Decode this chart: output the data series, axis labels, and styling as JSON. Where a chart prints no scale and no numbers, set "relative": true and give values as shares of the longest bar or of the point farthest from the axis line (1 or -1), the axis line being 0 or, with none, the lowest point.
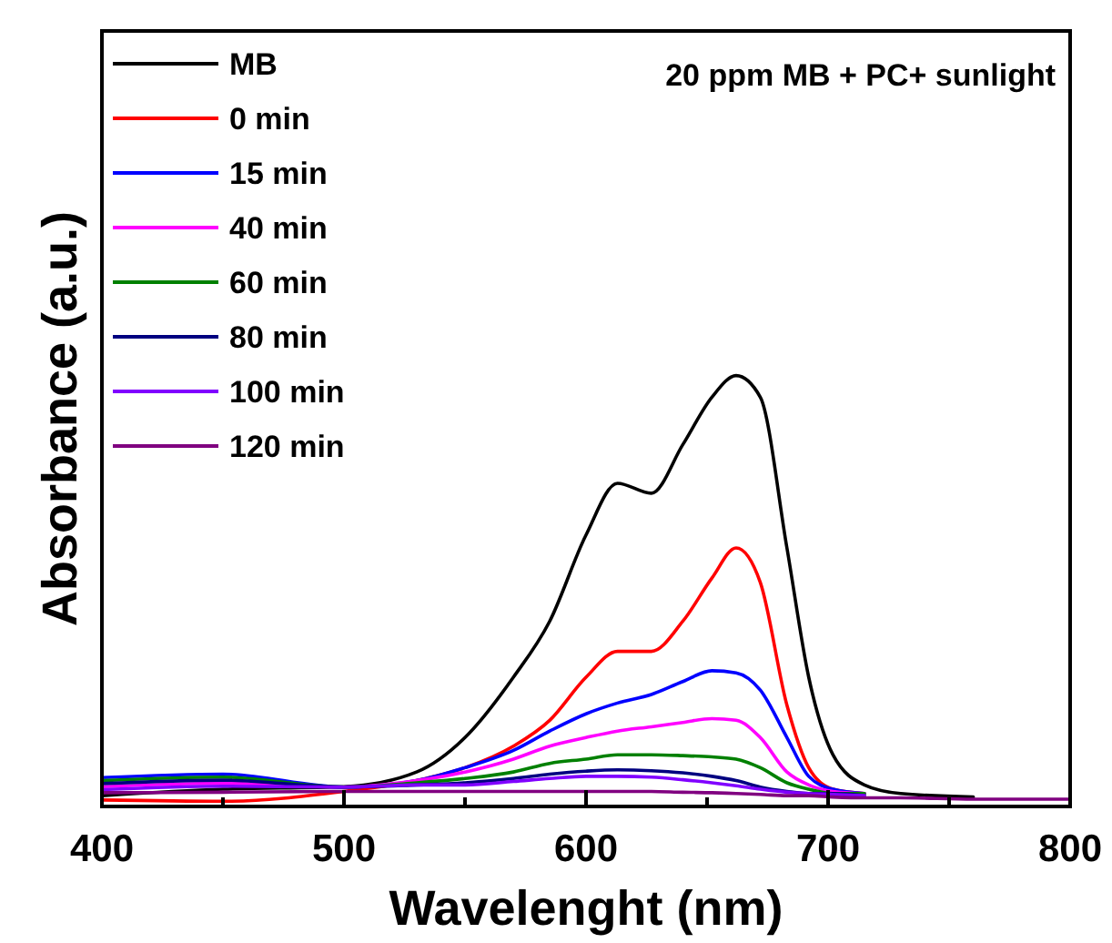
{
  "chart_data": {
    "type": "line",
    "relative": true,
    "xlabel": "Wavelenght (nm)",
    "ylabel": "Absorbance (a.u.)",
    "annotations": [
      "20 ppm MB + PC+ sunlight"
    ],
    "legend": "top left",
    "grid": false,
    "line_style": "solid",
    "marker": "none",
    "xlim": [
      400,
      800
    ],
    "xticks": [
      400,
      {
        "value": 450,
        "label": null
      },
      500,
      {
        "value": 550,
        "label": null
      },
      600,
      {
        "value": 650,
        "label": null
      },
      700,
      {
        "value": 750,
        "label": null
      },
      800
    ],
    "x": [
      400,
      450,
      500,
      530,
      550,
      570,
      585,
      600,
      613,
      627,
      640,
      652,
      662,
      672,
      683,
      692,
      702,
      715,
      730,
      760,
      800
    ],
    "series": [
      {
        "name": "MB",
        "color": "#000000",
        "values": [
          0.025,
          0.04,
          0.046,
          0.08,
          0.16,
          0.3,
          0.43,
          0.63,
          0.75,
          0.727,
          0.84,
          0.95,
          1,
          0.95,
          0.6,
          0.3,
          0.12,
          0.05,
          0.03,
          0.022,
          null
        ]
      },
      {
        "name": "0 min",
        "color": "#ff0000",
        "values": [
          0.015,
          0.012,
          0.035,
          0.06,
          0.09,
          0.14,
          0.2,
          0.3,
          0.36,
          0.36,
          0.43,
          0.53,
          0.6,
          0.52,
          0.235,
          0.09,
          0.04,
          0.03,
          null,
          null,
          null
        ]
      },
      {
        "name": "15 min",
        "color": "#0000ff",
        "values": [
          0.067,
          0.075,
          0.045,
          0.06,
          0.09,
          0.13,
          0.175,
          0.215,
          0.24,
          0.26,
          0.29,
          0.315,
          0.31,
          0.27,
          0.16,
          0.07,
          0.04,
          0.03,
          null,
          null,
          null
        ]
      },
      {
        "name": "40 min",
        "color": "#ff00ff",
        "values": [
          0.046,
          0.054,
          0.045,
          0.06,
          0.08,
          0.11,
          0.14,
          0.16,
          0.175,
          0.185,
          0.195,
          0.204,
          0.2,
          0.16,
          0.08,
          0.05,
          0.035,
          0.03,
          null,
          null,
          null
        ]
      },
      {
        "name": "60 min",
        "color": "#008000",
        "values": [
          0.06,
          0.068,
          0.045,
          0.055,
          0.065,
          0.08,
          0.1,
          0.11,
          0.12,
          0.12,
          0.118,
          0.115,
          0.11,
          0.09,
          0.055,
          0.04,
          0.03,
          0.03,
          null,
          null,
          null
        ]
      },
      {
        "name": "80 min",
        "color": "#000080",
        "values": [
          0.053,
          0.061,
          0.045,
          0.05,
          0.055,
          0.065,
          0.075,
          0.082,
          0.085,
          0.083,
          0.078,
          0.07,
          0.06,
          0.045,
          0.035,
          0.03,
          0.03,
          0.025,
          null,
          null,
          null
        ]
      },
      {
        "name": "100 min",
        "color": "#8000ff",
        "values": [
          0.039,
          0.047,
          0.045,
          0.05,
          0.05,
          0.058,
          0.065,
          0.07,
          0.07,
          0.068,
          0.062,
          0.055,
          0.048,
          0.04,
          0.033,
          0.03,
          0.028,
          0.025,
          null,
          null,
          null
        ]
      },
      {
        "name": "120 min",
        "color": "#800080",
        "values": [
          0.032,
          0.033,
          0.035,
          0.035,
          0.035,
          0.035,
          0.035,
          0.035,
          0.035,
          0.035,
          0.033,
          0.032,
          0.03,
          0.028,
          0.025,
          0.025,
          0.022,
          0.02,
          0.02,
          0.017,
          0.017
        ]
      }
    ]
  }
}
